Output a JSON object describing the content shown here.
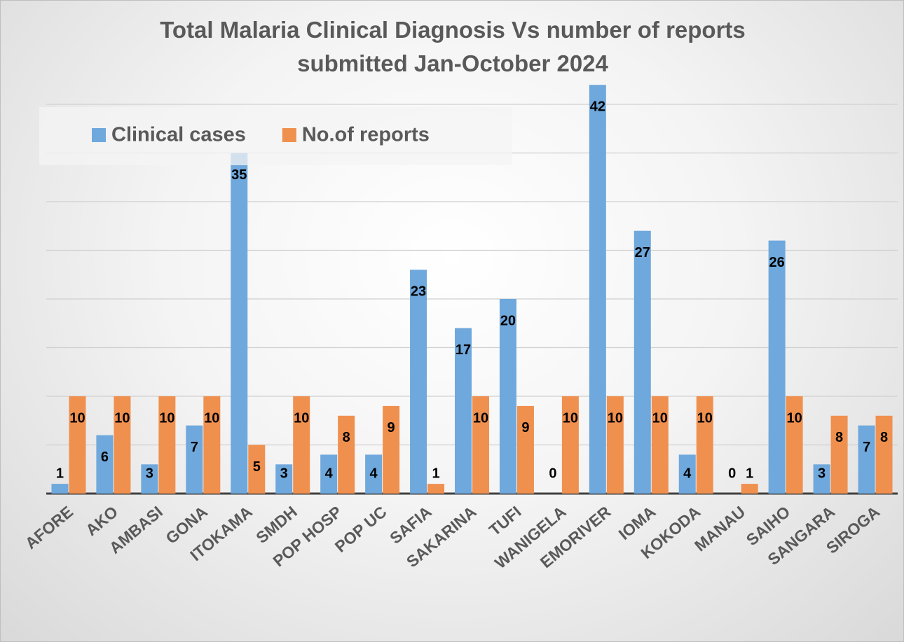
{
  "chart_data": {
    "type": "bar",
    "title": "Total Malaria Clinical Diagnosis Vs number of reports submitted Jan-October 2024",
    "categories": [
      "AFORE",
      "AKO",
      "AMBASI",
      "GONA",
      "ITOKAMA",
      "SMDH",
      "POP HOSP",
      "POP UC",
      "SAFIA",
      "SAKARINA",
      "TUFI",
      "WANIGELA",
      "EMORIVER",
      "IOMA",
      "KOKODA",
      "MANAU",
      "SAIHO",
      "SANGARA",
      "SIROGA"
    ],
    "series": [
      {
        "name": "Clinical cases",
        "color": "#6fa8dc",
        "values": [
          1,
          6,
          3,
          7,
          35,
          3,
          4,
          4,
          23,
          17,
          20,
          0,
          42,
          27,
          4,
          0,
          26,
          3,
          7
        ]
      },
      {
        "name": "No.of reports",
        "color": "#f0904f",
        "values": [
          10,
          10,
          10,
          10,
          5,
          10,
          8,
          9,
          1,
          10,
          9,
          10,
          10,
          10,
          10,
          1,
          10,
          8,
          8
        ]
      }
    ],
    "ylim": [
      0,
      45
    ],
    "yticks": [
      0,
      5,
      10,
      15,
      20,
      25,
      30,
      35,
      40
    ],
    "grid": true,
    "legend": "top-left"
  }
}
